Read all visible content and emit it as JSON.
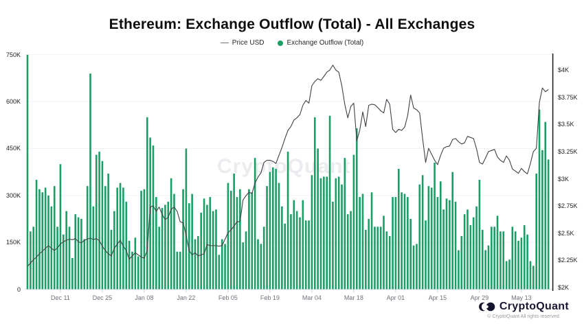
{
  "title": "Ethereum: Exchange Outflow (Total) - All Exchanges",
  "legend": {
    "price_label": "Price USD",
    "outflow_label": "Exchange Outflow (Total)"
  },
  "watermark": "CryptoQuant",
  "footer": {
    "brand": "CryptoQuant",
    "copyright": "© CryptoQuant All rights reserved."
  },
  "colors": {
    "bar": "#1B9E65",
    "price_line": "#3f3f46",
    "right_axis_line": "#22222a",
    "grid": "#f1f1f4",
    "baseline": "#e3e3e8",
    "tick_mark": "#cfcfd6"
  },
  "chart_data": {
    "type": "bar",
    "title": "Ethereum: Exchange Outflow (Total) - All Exchanges",
    "legend_position": "top",
    "grid": "horizontal-light",
    "start_date": "Nov 30",
    "interval": "daily",
    "x_ticks": [
      "Dec 11",
      "Dec 25",
      "Jan 08",
      "Jan 22",
      "Feb 05",
      "Feb 19",
      "Mar 04",
      "Mar 18",
      "Apr 01",
      "Apr 15",
      "Apr 29",
      "May 13"
    ],
    "x_tick_day_index": [
      11,
      25,
      39,
      53,
      67,
      81,
      95,
      109,
      123,
      137,
      151,
      165
    ],
    "y_left": {
      "ticks": [
        "750K",
        "600K",
        "450K",
        "300K",
        "150K",
        "0"
      ],
      "tick_values_k": [
        750,
        600,
        450,
        300,
        150,
        0
      ],
      "min": 0,
      "max": 750000,
      "series": "Exchange Outflow (Total)"
    },
    "y_right": {
      "ticks": [
        "$4K",
        "$3.75K",
        "$3.5K",
        "$3.25K",
        "$3K",
        "$2.75K",
        "$2.5K",
        "$2.25K",
        "$2K"
      ],
      "tick_values": [
        4000,
        3750,
        3500,
        3250,
        3000,
        2750,
        2500,
        2250,
        2000
      ],
      "min": 2000,
      "max": 4000,
      "series": "Price USD"
    },
    "series": [
      {
        "name": "Exchange Outflow (Total)",
        "type": "bar",
        "unit": "thousand ETH",
        "values": [
          750,
          185,
          200,
          350,
          320,
          310,
          325,
          300,
          265,
          330,
          200,
          400,
          175,
          250,
          200,
          100,
          240,
          230,
          225,
          160,
          330,
          690,
          265,
          430,
          440,
          410,
          330,
          370,
          190,
          250,
          325,
          340,
          325,
          280,
          155,
          120,
          165,
          105,
          315,
          320,
          550,
          485,
          460,
          295,
          200,
          260,
          270,
          280,
          355,
          305,
          120,
          120,
          320,
          450,
          275,
          305,
          160,
          170,
          245,
          290,
          270,
          295,
          250,
          255,
          110,
          160,
          145,
          340,
          315,
          370,
          295,
          320,
          150,
          185,
          320,
          310,
          420,
          160,
          145,
          200,
          330,
          375,
          390,
          385,
          340,
          265,
          210,
          440,
          240,
          285,
          250,
          230,
          285,
          220,
          220,
          365,
          550,
          450,
          355,
          360,
          360,
          555,
          280,
          355,
          360,
          335,
          420,
          240,
          250,
          430,
          515,
          295,
          305,
          190,
          225,
          310,
          200,
          200,
          200,
          235,
          185,
          170,
          295,
          295,
          385,
          310,
          305,
          295,
          225,
          140,
          145,
          335,
          365,
          220,
          330,
          325,
          405,
          295,
          345,
          255,
          290,
          285,
          375,
          280,
          125,
          170,
          240,
          255,
          205,
          230,
          265,
          350,
          190,
          125,
          140,
          200,
          200,
          235,
          185,
          185,
          90,
          95,
          200,
          185,
          155,
          165,
          205,
          175,
          90,
          75,
          370,
          575,
          445,
          535,
          415
        ]
      },
      {
        "name": "Price USD",
        "type": "line",
        "unit": "USD",
        "values": [
          2195,
          2225,
          2255,
          2280,
          2310,
          2335,
          2360,
          2385,
          2360,
          2340,
          2365,
          2400,
          2420,
          2435,
          2445,
          2440,
          2450,
          2420,
          2410,
          2435,
          2445,
          2455,
          2440,
          2450,
          2430,
          2380,
          2340,
          2310,
          2290,
          2360,
          2400,
          2435,
          2380,
          2340,
          2260,
          2290,
          2320,
          2300,
          2280,
          2270,
          2340,
          2740,
          2750,
          2700,
          2740,
          2670,
          2625,
          2645,
          2720,
          2740,
          2700,
          2605,
          2595,
          2480,
          2340,
          2300,
          2320,
          2290,
          2300,
          2310,
          2395,
          2385,
          2385,
          2385,
          2380,
          2385,
          2445,
          2505,
          2530,
          2565,
          2605,
          2605,
          2805,
          2845,
          2875,
          2865,
          2960,
          3015,
          3055,
          3150,
          3170,
          3170,
          3160,
          3140,
          3215,
          3285,
          3370,
          3445,
          3480,
          3540,
          3560,
          3590,
          3675,
          3720,
          3695,
          3855,
          3895,
          3920,
          3905,
          3940,
          3980,
          4000,
          4045,
          4000,
          3980,
          3855,
          3685,
          3560,
          3665,
          3695,
          3350,
          3445,
          3615,
          3480,
          3675,
          3685,
          3680,
          3655,
          3625,
          3605,
          3730,
          3685,
          3455,
          3425,
          3455,
          3445,
          3475,
          3580,
          3770,
          3650,
          3635,
          3605,
          3370,
          3150,
          3280,
          3225,
          3170,
          3130,
          3215,
          3280,
          3295,
          3300,
          3360,
          3370,
          3340,
          3320,
          3330,
          3390,
          3380,
          3370,
          3275,
          3150,
          3135,
          3190,
          3250,
          3260,
          3270,
          3200,
          3170,
          3150,
          3210,
          3170,
          3090,
          3070,
          3050,
          3095,
          3065,
          3045,
          3140,
          3250,
          3280,
          3700,
          3835,
          3800,
          3820
        ]
      }
    ]
  }
}
